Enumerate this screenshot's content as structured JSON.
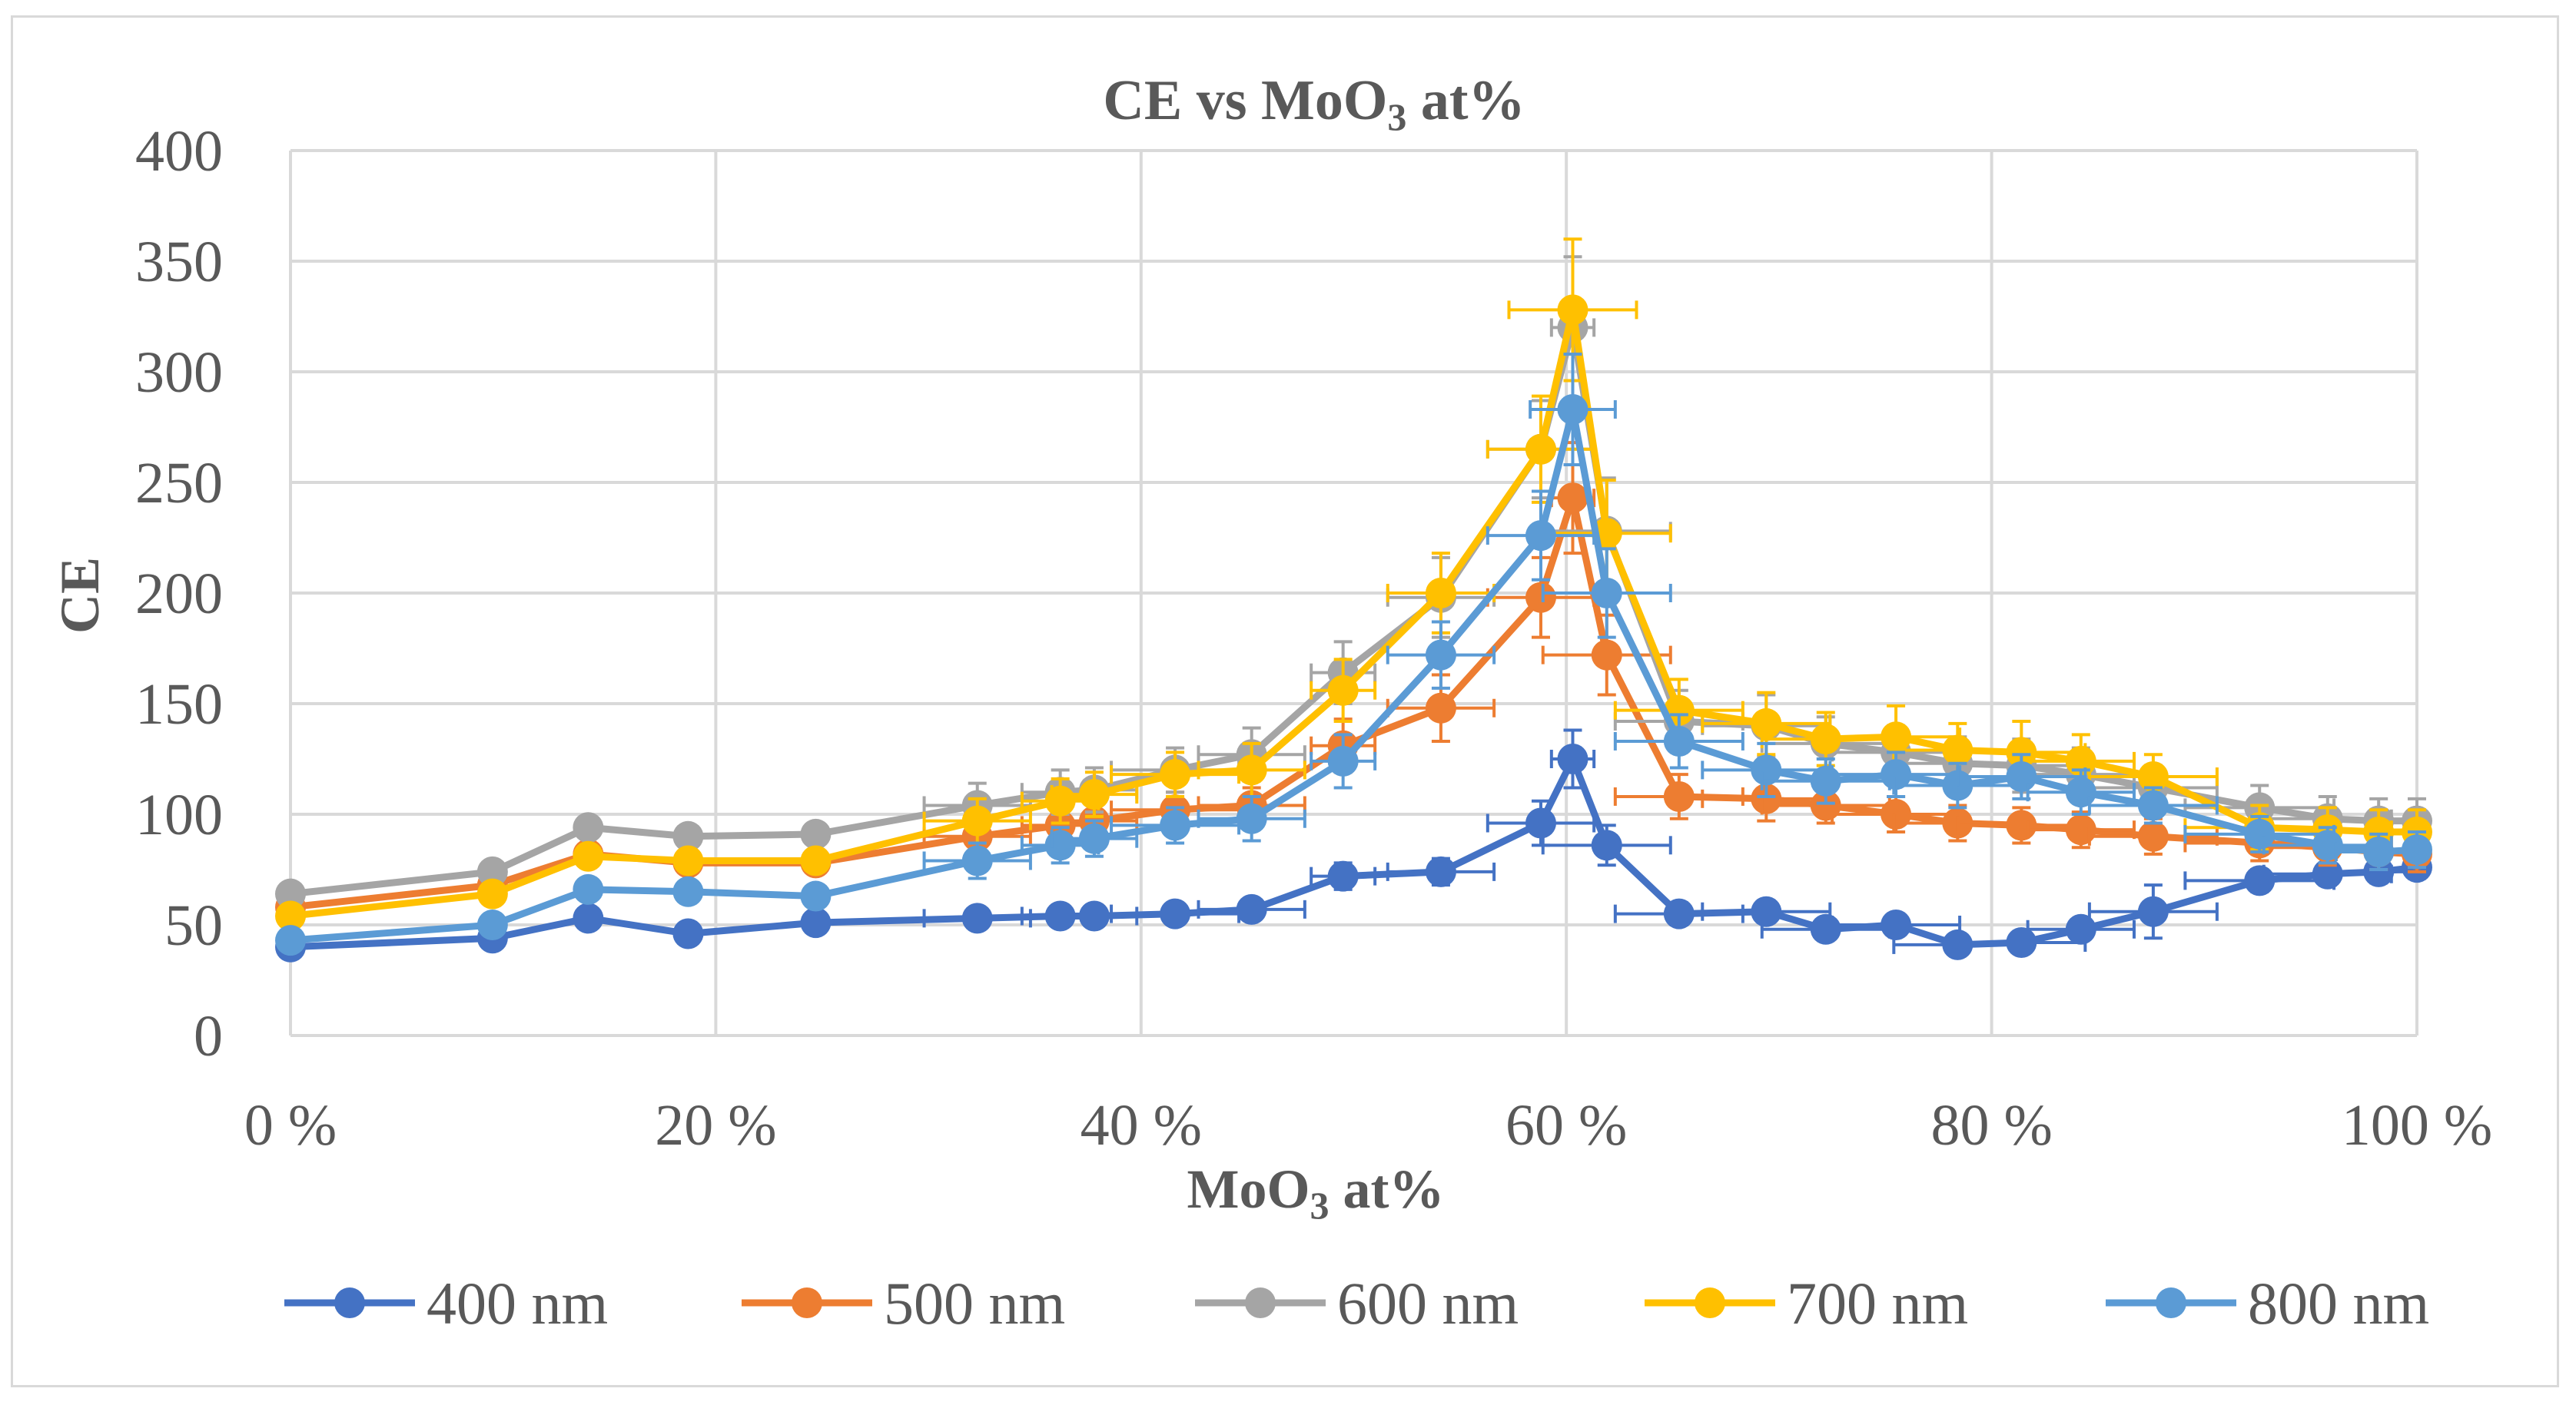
{
  "chart_data": {
    "type": "line",
    "title": "CE vs MoO",
    "title_subscript": "3",
    "title_suffix": " at%",
    "xlabel": "MoO",
    "xlabel_subscript": "3",
    "xlabel_suffix": " at%",
    "ylabel": "CE",
    "xlim": [
      0,
      100
    ],
    "ylim": [
      0,
      400
    ],
    "x_ticks": [
      0,
      20,
      40,
      60,
      80,
      100
    ],
    "x_tick_labels": [
      "0 %",
      "20 %",
      "40 %",
      "60 %",
      "80 %",
      "100 %"
    ],
    "y_ticks": [
      0,
      50,
      100,
      150,
      200,
      250,
      300,
      350,
      400
    ],
    "y_tick_labels": [
      "0",
      "50",
      "100",
      "150",
      "200",
      "250",
      "300",
      "350",
      "400"
    ],
    "grid": true,
    "legend_position": "bottom",
    "x": [
      0,
      9.5,
      14,
      18.7,
      24.7,
      32.3,
      36.2,
      37.8,
      41.6,
      45.2,
      49.5,
      54.1,
      58.8,
      60.3,
      61.9,
      65.3,
      69.4,
      72.2,
      75.5,
      78.4,
      81.4,
      84.2,
      87.6,
      92.6,
      95.8,
      98.2,
      100
    ],
    "series": [
      {
        "name": "400 nm",
        "color": "#4472c4",
        "values": [
          40,
          44,
          53,
          46,
          51,
          53,
          54,
          54,
          55,
          57,
          72,
          74,
          96,
          125,
          86,
          55,
          56,
          48,
          50,
          41,
          42,
          48,
          56,
          70,
          73,
          74,
          76
        ],
        "x_err": [
          0,
          0,
          0,
          0,
          0,
          2.5,
          1.8,
          2.0,
          3.0,
          2.5,
          1.5,
          2.5,
          2.5,
          1.0,
          3.0,
          3.0,
          3.0,
          3.0,
          3.0,
          3.0,
          3.0,
          2.5,
          3.0,
          3.5,
          3.0,
          2.0,
          0
        ],
        "y_err": [
          0,
          0,
          0,
          0,
          0,
          3,
          3,
          3,
          3,
          3,
          6,
          6,
          10,
          13,
          9,
          5,
          5,
          4,
          4,
          4,
          4,
          4,
          12,
          5,
          5,
          5,
          5
        ]
      },
      {
        "name": "500 nm",
        "color": "#ed7d31",
        "values": [
          58,
          68,
          82,
          78,
          78,
          90,
          95,
          97,
          102,
          104,
          131,
          148,
          198,
          243,
          172,
          108,
          107,
          104,
          100,
          96,
          95,
          93,
          90,
          87,
          85,
          83,
          82
        ],
        "x_err": [
          0,
          0,
          0,
          0,
          0,
          2.5,
          1.8,
          2.0,
          3.0,
          2.5,
          1.5,
          2.5,
          2.5,
          1.0,
          3.0,
          3.0,
          3.0,
          3.0,
          3.0,
          3.0,
          3.0,
          2.5,
          3.0,
          3.5,
          3.0,
          2.0,
          0
        ],
        "y_err": [
          0,
          0,
          0,
          0,
          0,
          8,
          8,
          8,
          8,
          8,
          12,
          15,
          18,
          25,
          18,
          10,
          10,
          8,
          8,
          8,
          8,
          8,
          8,
          8,
          8,
          8,
          8
        ]
      },
      {
        "name": "600 nm",
        "color": "#a5a5a5",
        "values": [
          64,
          74,
          94,
          90,
          91,
          104,
          110,
          111,
          120,
          127,
          164,
          198,
          265,
          320,
          228,
          142,
          140,
          132,
          128,
          123,
          122,
          118,
          112,
          103,
          98,
          97,
          97
        ],
        "x_err": [
          0,
          0,
          0,
          0,
          0,
          2.5,
          1.8,
          2.0,
          3.0,
          2.5,
          1.5,
          2.5,
          2.5,
          1.0,
          3.0,
          3.0,
          3.0,
          3.0,
          3.0,
          3.0,
          3.0,
          2.5,
          3.0,
          3.5,
          3.0,
          2.0,
          0
        ],
        "y_err": [
          0,
          0,
          0,
          0,
          0,
          10,
          10,
          10,
          10,
          12,
          14,
          18,
          22,
          32,
          24,
          14,
          14,
          12,
          12,
          12,
          12,
          12,
          10,
          10,
          10,
          10,
          10
        ]
      },
      {
        "name": "700 nm",
        "color": "#ffc000",
        "values": [
          54,
          64,
          81,
          79,
          79,
          97,
          106,
          109,
          118,
          120,
          156,
          200,
          265,
          328,
          227,
          147,
          141,
          134,
          135,
          129,
          128,
          124,
          117,
          94,
          93,
          92,
          92
        ],
        "x_err": [
          0,
          0,
          0,
          0,
          0,
          2.5,
          1.8,
          2.0,
          3.0,
          2.5,
          1.5,
          2.5,
          2.5,
          3.0,
          3.0,
          3.0,
          3.0,
          3.0,
          3.0,
          3.0,
          3.0,
          2.5,
          3.0,
          3.5,
          3.0,
          2.0,
          0
        ],
        "y_err": [
          0,
          0,
          0,
          0,
          0,
          10,
          10,
          10,
          10,
          12,
          14,
          18,
          24,
          32,
          24,
          14,
          14,
          12,
          14,
          12,
          14,
          12,
          10,
          10,
          10,
          10,
          10
        ]
      },
      {
        "name": "800 nm",
        "color": "#5b9bd5",
        "values": [
          43,
          50,
          66,
          65,
          63,
          79,
          86,
          89,
          95,
          98,
          124,
          172,
          226,
          283,
          200,
          133,
          120,
          115,
          118,
          113,
          117,
          110,
          104,
          91,
          86,
          83,
          84
        ],
        "x_err": [
          0,
          0,
          0,
          0,
          0,
          2.5,
          1.8,
          2.0,
          3.0,
          2.5,
          1.5,
          2.5,
          2.5,
          2.0,
          3.0,
          3.0,
          3.0,
          3.0,
          3.0,
          3.0,
          3.0,
          2.5,
          3.0,
          3.5,
          3.0,
          2.0,
          0
        ],
        "y_err": [
          0,
          0,
          0,
          0,
          0,
          8,
          8,
          8,
          8,
          10,
          12,
          15,
          20,
          25,
          20,
          12,
          12,
          10,
          10,
          10,
          10,
          10,
          8,
          8,
          8,
          8,
          8
        ]
      }
    ]
  }
}
